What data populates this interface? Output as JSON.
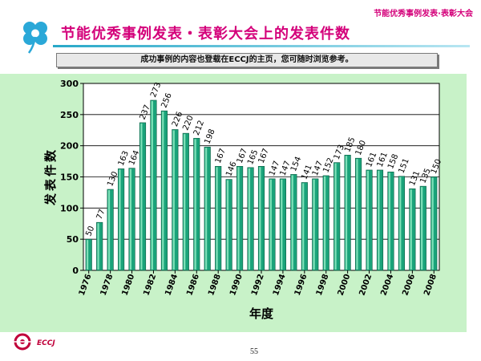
{
  "header": {
    "corner_label": "节能优秀事例发表·表彰大会",
    "title": "节能优秀事例发表・表彰大会上的发表件数",
    "notice": "成功事例的内容也登载在ECCJ的主页，您可随时浏览参考。"
  },
  "footer": {
    "logo_text": "ECCJ",
    "page_number": "55"
  },
  "colors": {
    "bar": "#1aa37a",
    "panel": "#c8f2c8",
    "accent": "#d4007a"
  },
  "chart_data": {
    "type": "bar",
    "xlabel": "年度",
    "ylabel": "发表件数",
    "ylim": [
      0,
      300
    ],
    "yticks": [
      0,
      50,
      100,
      150,
      200,
      250,
      300
    ],
    "grid": true,
    "categories": [
      1976,
      1977,
      1978,
      1979,
      1980,
      1981,
      1982,
      1983,
      1984,
      1985,
      1986,
      1987,
      1988,
      1989,
      1990,
      1991,
      1992,
      1993,
      1994,
      1995,
      1996,
      1997,
      1998,
      1999,
      2000,
      2001,
      2002,
      2003,
      2004,
      2005,
      2006,
      2007,
      2008
    ],
    "tick_labels": [
      "1976",
      "1978",
      "1980",
      "1982",
      "1984",
      "1986",
      "1988",
      "1990",
      "1992",
      "1994",
      "1996",
      "1998",
      "2000",
      "2002",
      "2004",
      "2006",
      "2008"
    ],
    "values": [
      50,
      77,
      130,
      163,
      164,
      237,
      273,
      256,
      226,
      220,
      212,
      198,
      167,
      146,
      167,
      165,
      167,
      147,
      147,
      154,
      141,
      147,
      152,
      173,
      185,
      180,
      161,
      161,
      158,
      151,
      131,
      135,
      150
    ]
  }
}
